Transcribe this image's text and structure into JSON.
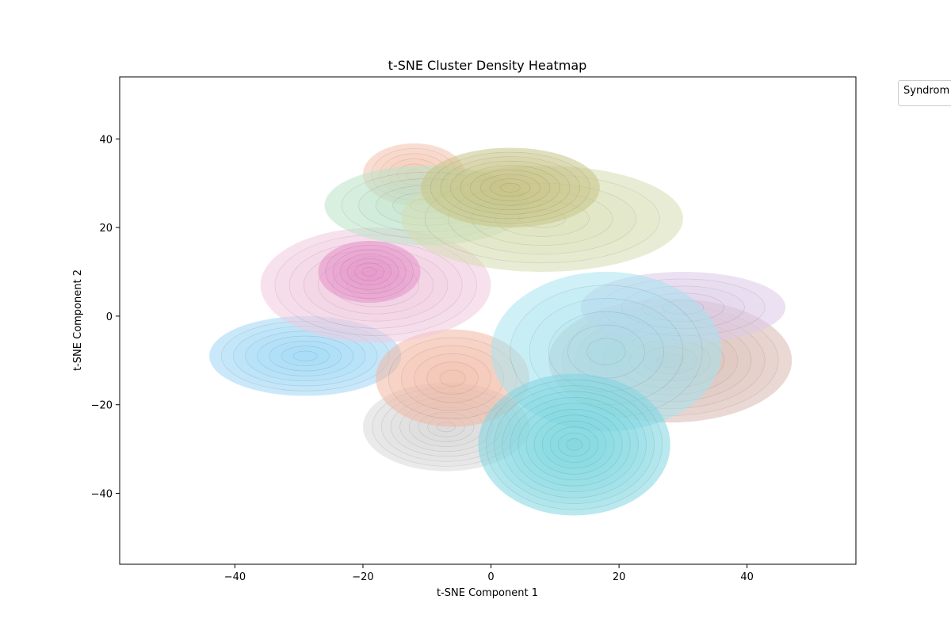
{
  "chart_data": {
    "type": "heatmap",
    "title": "t-SNE Cluster Density Heatmap",
    "xlabel": "t-SNE Component 1",
    "ylabel": "t-SNE Component 2",
    "xlim": [
      -58,
      57
    ],
    "ylim": [
      -56,
      54
    ],
    "x_ticks": [
      -40,
      -20,
      0,
      20,
      40
    ],
    "y_ticks": [
      -40,
      -20,
      0,
      20,
      40
    ],
    "x_tick_labels": [
      "−40",
      "−20",
      "0",
      "20",
      "40"
    ],
    "y_tick_labels": [
      "−40",
      "−20",
      "0",
      "20",
      "40"
    ],
    "grid": false,
    "legend": {
      "title": "Syndrom",
      "placement": "outside-top-right"
    },
    "density_clusters": [
      {
        "color": "#d9d9d9",
        "peak": [
          -7,
          -25
        ],
        "spread": [
          13,
          10
        ],
        "levels": 9
      },
      {
        "color": "#9ed5f5",
        "peak": [
          -29,
          -9
        ],
        "spread": [
          15,
          9
        ],
        "levels": 8
      },
      {
        "color": "#f6c1ad",
        "peak": [
          -12,
          32
        ],
        "spread": [
          8,
          7
        ],
        "levels": 6
      },
      {
        "color": "#f2b6a3",
        "peak": [
          -6,
          -14
        ],
        "spread": [
          12,
          11
        ],
        "levels": 6
      },
      {
        "color": "#d8b8b1",
        "peak": [
          28,
          -10
        ],
        "spread": [
          19,
          14
        ],
        "levels": 9
      },
      {
        "color": "#dcc8e8",
        "peak": [
          30,
          2
        ],
        "spread": [
          16,
          8
        ],
        "levels": 5
      },
      {
        "color": "#f0c9df",
        "peak": [
          -18,
          7
        ],
        "spread": [
          18,
          13
        ],
        "levels": 8
      },
      {
        "color": "#e68fc8",
        "peak": [
          -19,
          10
        ],
        "spread": [
          8,
          7
        ],
        "levels": 7
      },
      {
        "color": "#b9e3c6",
        "peak": [
          -10,
          25
        ],
        "spread": [
          16,
          9
        ],
        "levels": 6
      },
      {
        "color": "#d6ddb0",
        "peak": [
          8,
          22
        ],
        "spread": [
          22,
          12
        ],
        "levels": 6
      },
      {
        "color": "#c6c487",
        "peak": [
          3,
          29
        ],
        "spread": [
          14,
          9
        ],
        "levels": 9
      },
      {
        "color": "#a6e3ee",
        "peak": [
          18,
          -8
        ],
        "spread": [
          18,
          18
        ],
        "levels": 6
      },
      {
        "color": "#7fd6e2",
        "peak": [
          13,
          -29
        ],
        "spread": [
          15,
          16
        ],
        "levels": 12
      }
    ]
  }
}
